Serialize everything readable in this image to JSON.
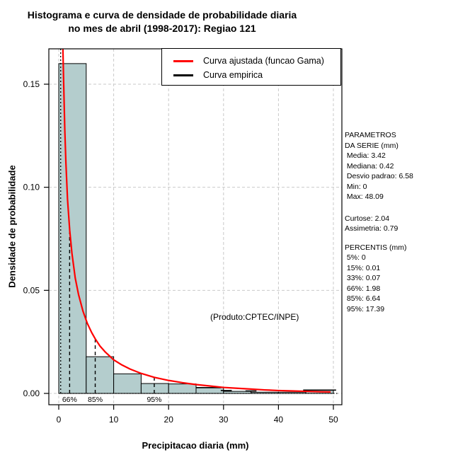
{
  "title": {
    "line1": "Histograma e curva de densidade de probabilidade diaria",
    "line2": "no mes de abril (1998-2017): Regiao 121"
  },
  "axes": {
    "x_label": "Precipitacao diaria (mm)",
    "y_label": "Densidade de probabilidade"
  },
  "legend": {
    "items": [
      {
        "label": "Curva ajustada (funcao Gama)",
        "color": "#ff0000"
      },
      {
        "label": "Curva empirica",
        "color": "#000000"
      }
    ]
  },
  "annotation": {
    "product": "(Produto:CPTEC/INPE)"
  },
  "side_panel": {
    "groups": [
      {
        "lines": [
          "PARAMETROS",
          "DA SERIE (mm)",
          " Media: 3.42",
          " Mediana: 0.42",
          " Desvio padrao: 6.58",
          " Min: 0",
          " Max: 48.09"
        ]
      },
      {
        "lines": [
          "Curtose: 2.04",
          "Assimetria: 0.79"
        ]
      },
      {
        "lines": [
          "PERCENTIS (mm)",
          " 5%: 0",
          " 15%: 0.01",
          " 33%: 0.07",
          " 66%: 1.98",
          " 85%: 6.64",
          " 95%: 17.39"
        ]
      }
    ]
  },
  "colors": {
    "bar_fill": "#b4cdcd",
    "bar_border": "#000000",
    "fitted_curve": "#ff0000",
    "empirical_curve": "#000000",
    "grid": "#c9c9c9"
  },
  "chart_data": {
    "type": "bar",
    "title": "Histograma e curva de densidade de probabilidade diaria no mes de abril (1998-2017): Regiao 121",
    "xlabel": "Precipitacao diaria (mm)",
    "ylabel": "Densidade de probabilidade",
    "xlim": [
      -1.8,
      51.5
    ],
    "ylim": [
      -0.005,
      0.167
    ],
    "grid": true,
    "legend_position": "top-right",
    "x_ticks": [
      {
        "label": "0",
        "value": 0
      },
      {
        "label": "10",
        "value": 10
      },
      {
        "label": "20",
        "value": 20
      },
      {
        "label": "30",
        "value": 30
      },
      {
        "label": "40",
        "value": 40
      },
      {
        "label": "50",
        "value": 50
      }
    ],
    "y_ticks": [
      {
        "label": "0.00",
        "value": 0
      },
      {
        "label": "0.05",
        "value": 0.05
      },
      {
        "label": "0.10",
        "value": 0.1
      },
      {
        "label": "0.15",
        "value": 0.15
      }
    ],
    "histogram": {
      "bin_width_mm": 5,
      "edges": [
        0,
        5,
        10,
        15,
        20,
        25,
        30,
        35,
        40,
        45,
        50
      ],
      "densities": [
        0.16,
        0.0178,
        0.0095,
        0.0048,
        0.0046,
        0.0028,
        0.001,
        0.0006,
        0.0006,
        0.0016
      ]
    },
    "fitted_curve": {
      "name": "Curva ajustada (funcao Gama)",
      "x": [
        0.6,
        0.75,
        0.9,
        1.1,
        1.3,
        1.6,
        2.0,
        2.4,
        3.0,
        3.6,
        4.4,
        5.2,
        6.0,
        6.64,
        7.5,
        8.5,
        10,
        11.5,
        13,
        15,
        17.4,
        20,
        22.5,
        25,
        27.5,
        30,
        32.5,
        35,
        37.5,
        40,
        42.5,
        45,
        47.5,
        49.5
      ],
      "y": [
        0.18,
        0.168,
        0.15,
        0.128,
        0.112,
        0.094,
        0.079,
        0.068,
        0.056,
        0.048,
        0.04,
        0.034,
        0.0295,
        0.0265,
        0.023,
        0.02,
        0.0163,
        0.0138,
        0.0118,
        0.0097,
        0.0078,
        0.0063,
        0.0052,
        0.0043,
        0.0036,
        0.0029,
        0.0025,
        0.0021,
        0.0017,
        0.0014,
        0.0012,
        0.001,
        0.0008,
        0.0007
      ]
    },
    "empirical_curve": {
      "name": "Curva empirica",
      "spike_x": 0.35,
      "baseline_x": [
        0,
        50.8
      ],
      "segments": [
        [
          25.0,
          29.5,
          0.0028
        ],
        [
          29.5,
          31.5,
          0.0014
        ],
        [
          34.0,
          36.0,
          0.0012
        ],
        [
          44.5,
          50.5,
          0.0016
        ]
      ]
    },
    "percentile_markers": [
      {
        "label": "66%",
        "x": 1.98,
        "curve_y": 0.079
      },
      {
        "label": "85%",
        "x": 6.64,
        "curve_y": 0.0265
      },
      {
        "label": "95%",
        "x": 17.39,
        "curve_y": 0.0078
      }
    ]
  }
}
